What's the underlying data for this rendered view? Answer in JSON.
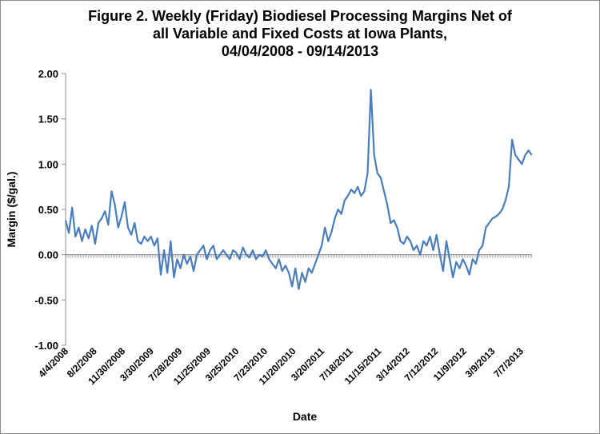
{
  "chart_data": {
    "type": "line",
    "title": [
      "Figure 2. Weekly (Friday) Biodiesel Processing Margins Net of",
      "all Variable and Fixed Costs at Iowa Plants,",
      "04/04/2008  - 09/14/2013"
    ],
    "xlabel": "Date",
    "ylabel": "Margin ($/gal.)",
    "ylim": [
      -1.0,
      2.0
    ],
    "y_ticks": [
      -1.0,
      -0.5,
      0.0,
      0.5,
      1.0,
      1.5,
      2.0
    ],
    "y_tick_labels": [
      "-1.00",
      "-0.50",
      "0.00",
      "0.50",
      "1.00",
      "1.50",
      "2.00"
    ],
    "x_tick_labels": [
      "4/4/2008",
      "8/2/2008",
      "11/30/2008",
      "3/30/2009",
      "7/28/2009",
      "11/25/2009",
      "3/25/2010",
      "7/23/2010",
      "11/20/2010",
      "3/20/2011",
      "7/18/2011",
      "11/15/2011",
      "3/14/2012",
      "7/12/2012",
      "11/9/2012",
      "3/9/2013",
      "7/7/2013"
    ],
    "x_range": [
      "2008-04-04",
      "2013-09-14"
    ],
    "grid": false,
    "legend": "none",
    "line_color": "#4a7ebb",
    "series": [
      {
        "x": [
          "2008-04-04",
          "2008-04-18",
          "2008-05-02",
          "2008-05-16",
          "2008-05-30",
          "2008-06-13",
          "2008-06-27",
          "2008-07-11",
          "2008-07-25",
          "2008-08-08",
          "2008-08-22",
          "2008-09-05",
          "2008-09-19",
          "2008-10-03",
          "2008-10-17",
          "2008-10-31",
          "2008-11-14",
          "2008-11-28",
          "2008-12-12",
          "2008-12-26",
          "2009-01-09",
          "2009-01-23",
          "2009-02-06",
          "2009-02-20",
          "2009-03-06",
          "2009-03-20",
          "2009-04-03",
          "2009-04-17",
          "2009-05-01",
          "2009-05-15",
          "2009-05-29",
          "2009-06-12",
          "2009-06-26",
          "2009-07-10",
          "2009-07-24",
          "2009-08-07",
          "2009-08-21",
          "2009-09-04",
          "2009-09-18",
          "2009-10-02",
          "2009-10-16",
          "2009-10-30",
          "2009-11-13",
          "2009-11-27",
          "2009-12-11",
          "2009-12-25",
          "2010-01-08",
          "2010-01-22",
          "2010-02-05",
          "2010-02-19",
          "2010-03-05",
          "2010-03-19",
          "2010-04-02",
          "2010-04-16",
          "2010-04-30",
          "2010-05-14",
          "2010-05-28",
          "2010-06-11",
          "2010-06-25",
          "2010-07-09",
          "2010-07-23",
          "2010-08-06",
          "2010-08-20",
          "2010-09-03",
          "2010-09-17",
          "2010-10-01",
          "2010-10-15",
          "2010-10-29",
          "2010-11-12",
          "2010-11-26",
          "2010-12-10",
          "2010-12-24",
          "2011-01-07",
          "2011-01-21",
          "2011-02-04",
          "2011-02-18",
          "2011-03-04",
          "2011-03-18",
          "2011-04-01",
          "2011-04-15",
          "2011-04-29",
          "2011-05-13",
          "2011-05-27",
          "2011-06-10",
          "2011-06-24",
          "2011-07-08",
          "2011-07-22",
          "2011-08-05",
          "2011-08-19",
          "2011-09-02",
          "2011-09-16",
          "2011-09-30",
          "2011-10-14",
          "2011-10-28",
          "2011-11-11",
          "2011-11-25",
          "2011-12-09",
          "2011-12-23",
          "2012-01-06",
          "2012-01-20",
          "2012-02-03",
          "2012-02-17",
          "2012-03-02",
          "2012-03-16",
          "2012-03-30",
          "2012-04-13",
          "2012-04-27",
          "2012-05-11",
          "2012-05-25",
          "2012-06-08",
          "2012-06-22",
          "2012-07-06",
          "2012-07-20",
          "2012-08-03",
          "2012-08-17",
          "2012-08-31",
          "2012-09-14",
          "2012-09-28",
          "2012-10-12",
          "2012-10-26",
          "2012-11-09",
          "2012-11-23",
          "2012-12-07",
          "2012-12-21",
          "2013-01-04",
          "2013-01-18",
          "2013-02-01",
          "2013-02-15",
          "2013-03-01",
          "2013-03-15",
          "2013-03-29",
          "2013-04-12",
          "2013-04-26",
          "2013-05-10",
          "2013-05-24",
          "2013-06-07",
          "2013-06-21",
          "2013-07-05",
          "2013-07-19",
          "2013-08-02",
          "2013-08-16",
          "2013-08-30",
          "2013-09-13"
        ],
        "values": [
          0.38,
          0.24,
          0.52,
          0.2,
          0.3,
          0.15,
          0.28,
          0.18,
          0.32,
          0.12,
          0.35,
          0.4,
          0.48,
          0.33,
          0.7,
          0.55,
          0.3,
          0.42,
          0.58,
          0.3,
          0.22,
          0.35,
          0.15,
          0.12,
          0.2,
          0.15,
          0.2,
          0.1,
          0.18,
          -0.22,
          0.05,
          -0.2,
          0.15,
          -0.25,
          -0.05,
          -0.15,
          0.0,
          -0.1,
          -0.02,
          -0.18,
          0.0,
          0.05,
          0.1,
          -0.05,
          0.05,
          0.1,
          -0.05,
          0.0,
          0.05,
          0.0,
          -0.05,
          0.05,
          0.02,
          -0.05,
          0.08,
          0.0,
          -0.03,
          0.05,
          -0.05,
          0.0,
          -0.02,
          0.05,
          -0.05,
          -0.1,
          -0.15,
          -0.05,
          -0.18,
          -0.12,
          -0.2,
          -0.35,
          -0.15,
          -0.38,
          -0.2,
          -0.3,
          -0.15,
          -0.2,
          -0.1,
          0.0,
          0.1,
          0.3,
          0.15,
          0.25,
          0.4,
          0.5,
          0.45,
          0.6,
          0.65,
          0.72,
          0.68,
          0.75,
          0.65,
          0.7,
          0.9,
          1.82,
          1.1,
          0.9,
          0.85,
          0.7,
          0.55,
          0.35,
          0.38,
          0.3,
          0.15,
          0.12,
          0.2,
          0.15,
          0.05,
          0.1,
          0.0,
          0.15,
          0.1,
          0.2,
          0.05,
          0.22,
          0.0,
          -0.18,
          0.15,
          -0.05,
          -0.25,
          -0.08,
          -0.15,
          -0.05,
          -0.12,
          -0.22,
          -0.05,
          -0.1,
          0.05,
          0.1,
          0.3,
          0.35,
          0.4,
          0.42,
          0.45,
          0.5,
          0.6,
          0.75,
          1.27,
          1.1,
          1.05,
          1.0,
          1.1,
          1.15,
          1.1
        ]
      }
    ]
  }
}
